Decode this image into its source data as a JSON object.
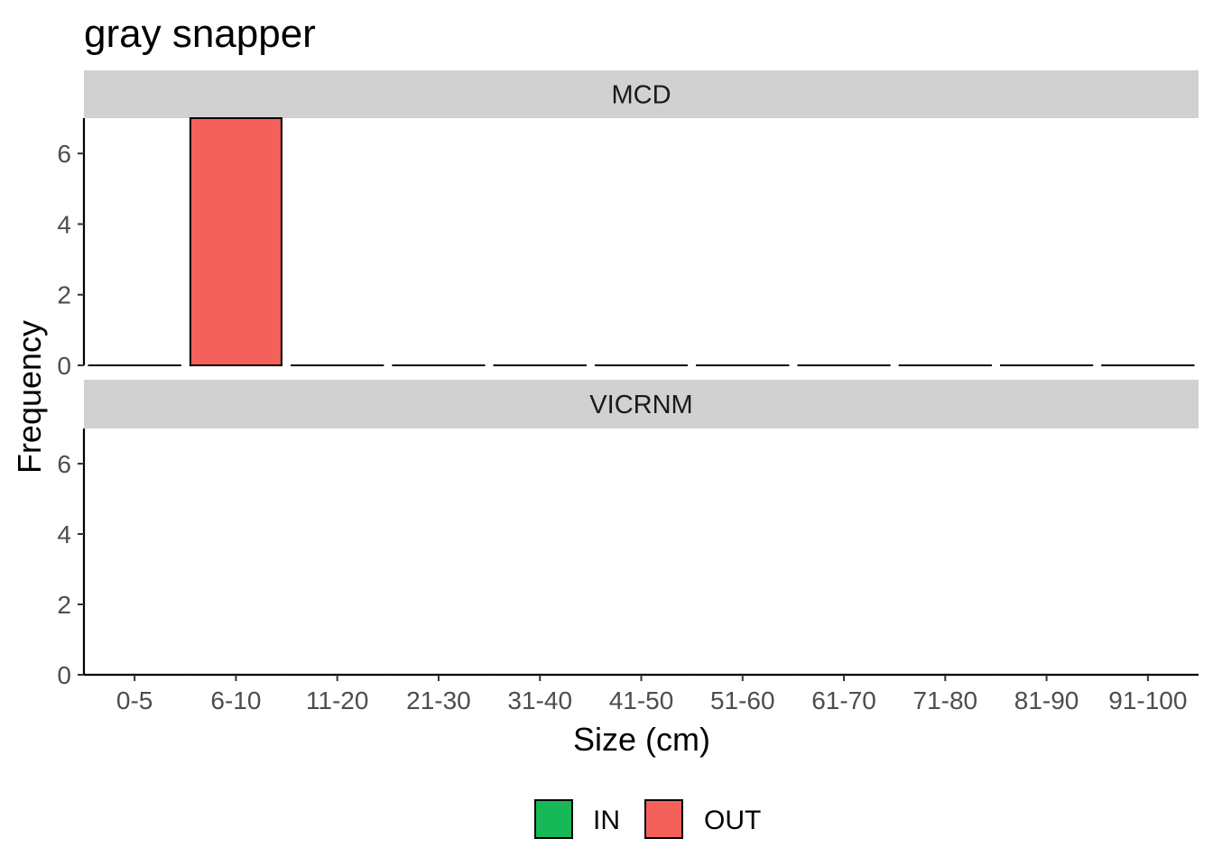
{
  "chart_data": {
    "type": "bar",
    "title": "gray snapper",
    "xlabel": "Size (cm)",
    "ylabel": "Frequency",
    "categories": [
      "0-5",
      "6-10",
      "11-20",
      "21-30",
      "31-40",
      "41-50",
      "51-60",
      "61-70",
      "71-80",
      "81-90",
      "91-100"
    ],
    "ylim": [
      0,
      7
    ],
    "yticks": [
      0,
      2,
      4,
      6
    ],
    "grid": false,
    "legend_position": "bottom",
    "legend": [
      {
        "name": "IN",
        "color": "#17B857"
      },
      {
        "name": "OUT",
        "color": "#F4605A"
      }
    ],
    "panels": [
      {
        "label": "MCD",
        "series": [
          {
            "name": "IN",
            "values": [
              0,
              0,
              0,
              0,
              0,
              0,
              0,
              0,
              0,
              0,
              0
            ]
          },
          {
            "name": "OUT",
            "values": [
              0,
              7,
              0,
              0,
              0,
              0,
              0,
              0,
              0,
              0,
              0
            ]
          }
        ]
      },
      {
        "label": "VICRNM",
        "series": [
          {
            "name": "IN",
            "values": [
              0,
              0,
              0,
              0,
              0,
              0,
              0,
              0,
              0,
              0,
              0
            ]
          },
          {
            "name": "OUT",
            "values": [
              0,
              0,
              0,
              0,
              0,
              0,
              0,
              0,
              0,
              0,
              0
            ]
          }
        ]
      }
    ]
  }
}
